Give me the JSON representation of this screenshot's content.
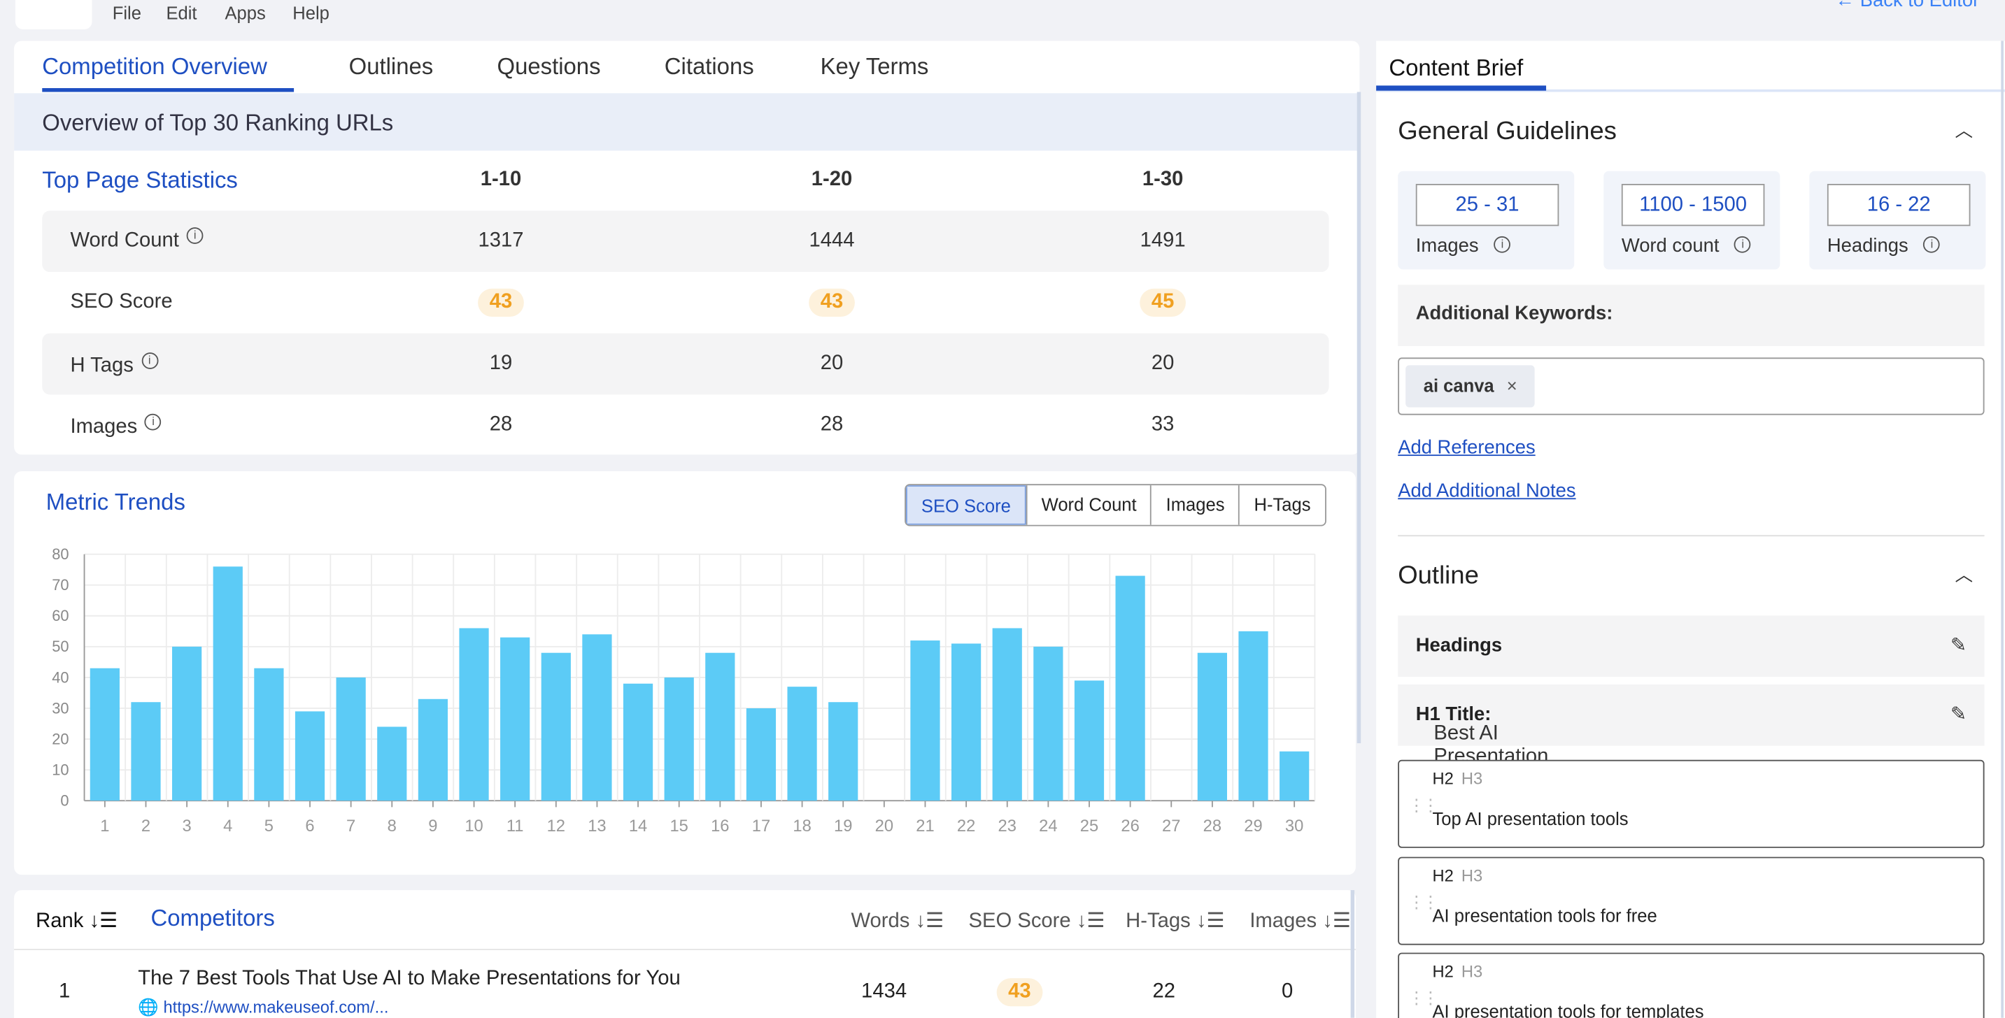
{
  "menu": {
    "items": [
      "File",
      "Edit",
      "Apps",
      "Help"
    ],
    "back": "← Back to Editor"
  },
  "tabs": [
    "Competition Overview",
    "Outlines",
    "Questions",
    "Citations",
    "Key Terms"
  ],
  "overview": {
    "band_title": "Overview of Top 30 Ranking URLs",
    "title": "Top Page Statistics",
    "columns": [
      "1-10",
      "1-20",
      "1-30"
    ],
    "rows": [
      {
        "label": "Word Count",
        "values": [
          "1317",
          "1444",
          "1491"
        ]
      },
      {
        "label": "SEO Score",
        "values": [
          "43",
          "43",
          "45"
        ]
      },
      {
        "label": "H Tags",
        "values": [
          "19",
          "20",
          "20"
        ]
      },
      {
        "label": "Images",
        "values": [
          "28",
          "28",
          "33"
        ]
      }
    ]
  },
  "metric": {
    "title": "Metric Trends",
    "buttons": [
      "SEO Score",
      "Word Count",
      "Images",
      "H-Tags"
    ],
    "selected": "SEO Score"
  },
  "chart_data": {
    "type": "bar",
    "categories": [
      "1",
      "2",
      "3",
      "4",
      "5",
      "6",
      "7",
      "8",
      "9",
      "10",
      "11",
      "12",
      "13",
      "14",
      "15",
      "16",
      "17",
      "18",
      "19",
      "20",
      "21",
      "22",
      "23",
      "24",
      "25",
      "26",
      "27",
      "28",
      "29",
      "30"
    ],
    "values": [
      43,
      32,
      50,
      76,
      43,
      29,
      40,
      24,
      33,
      56,
      53,
      48,
      54,
      38,
      40,
      48,
      30,
      37,
      32,
      0,
      52,
      51,
      56,
      50,
      39,
      73,
      0,
      48,
      55,
      16
    ],
    "yticks": [
      "80",
      "70",
      "60",
      "50",
      "40",
      "30",
      "20",
      "10",
      "0"
    ],
    "ylim": [
      0,
      80
    ],
    "grid": true,
    "bar_color": "#5ccbf6"
  },
  "competitors": {
    "rank_label": "Rank",
    "title": "Competitors",
    "headers": [
      "Words",
      "SEO Score",
      "H-Tags",
      "Images"
    ],
    "rows": [
      {
        "rank": "1",
        "title": "The 7 Best Tools That Use AI to Make Presentations for You",
        "url": "https://www.makeuseof.com/...",
        "words": "1434",
        "seo": "43",
        "htags": "22",
        "images": "0"
      }
    ]
  },
  "brief": {
    "tab": "Content Brief",
    "general_title": "General Guidelines",
    "guidelines": [
      {
        "value": "25 - 31",
        "label": "Images"
      },
      {
        "value": "1100 - 1500",
        "label": "Word count"
      },
      {
        "value": "16 - 22",
        "label": "Headings"
      }
    ],
    "additional_keywords_label": "Additional Keywords:",
    "keyword_chip": "ai canva",
    "add_references": "Add References",
    "add_notes": "Add Additional Notes",
    "outline_title": "Outline",
    "headings_label": "Headings",
    "h1_label": "H1 Title:",
    "h1_value": "Best AI Presentation Tools",
    "h2_items": [
      {
        "h2": "H2",
        "h3": "H3",
        "text": "Top AI presentation tools"
      },
      {
        "h2": "H2",
        "h3": "H3",
        "text": "AI presentation tools for free"
      },
      {
        "h2": "H2",
        "h3": "H3",
        "text": "AI presentation tools for templates"
      }
    ]
  }
}
